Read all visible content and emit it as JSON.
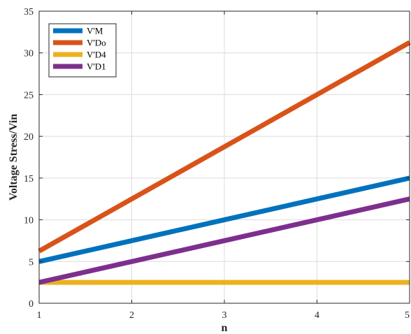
{
  "chart_data": {
    "type": "line",
    "title": "",
    "xlabel": "n",
    "ylabel": "Voltage Stress/Vin",
    "xlim": [
      1,
      5
    ],
    "ylim": [
      0,
      35
    ],
    "xticks": [
      1,
      2,
      3,
      4,
      5
    ],
    "yticks": [
      0,
      5,
      10,
      15,
      20,
      25,
      30,
      35
    ],
    "grid": true,
    "legend_position": "top-left",
    "x": [
      1,
      2,
      3,
      4,
      5
    ],
    "series": [
      {
        "name": "V'M",
        "color": "#0072BD",
        "values": [
          5,
          7.5,
          10,
          12.5,
          15
        ]
      },
      {
        "name": "V'Do",
        "color": "#D95319",
        "values": [
          6.25,
          12.5,
          18.75,
          25,
          31.25
        ]
      },
      {
        "name": "V'D4",
        "color": "#EDB120",
        "values": [
          2.5,
          2.5,
          2.5,
          2.5,
          2.5
        ]
      },
      {
        "name": "V'D1",
        "color": "#7E2F8E",
        "values": [
          2.5,
          5,
          7.5,
          10,
          12.5
        ]
      }
    ]
  }
}
